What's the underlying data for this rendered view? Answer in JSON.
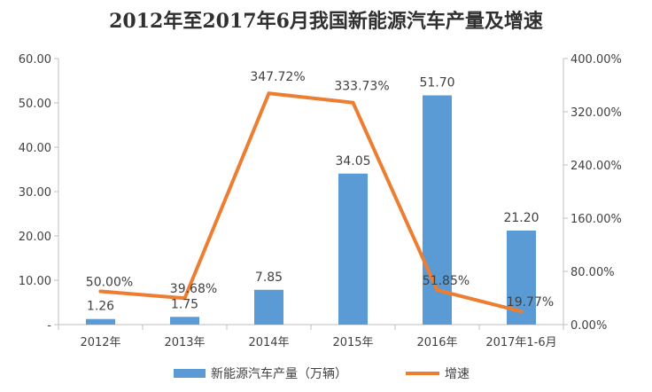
{
  "chart_data": {
    "type": "bar",
    "title": "2012年至2017年6月我国新能源汽车产量及增速",
    "categories": [
      "2012年",
      "2013年",
      "2014年",
      "2015年",
      "2016年",
      "2017年1-6月"
    ],
    "series": [
      {
        "name": "新能源汽车产量（万辆）",
        "type": "bar",
        "axis": "left",
        "values": [
          1.26,
          1.75,
          7.85,
          34.05,
          51.7,
          21.2
        ],
        "labels": [
          "1.26",
          "1.75",
          "7.85",
          "34.05",
          "51.70",
          "21.20"
        ],
        "color": "#5b9bd5"
      },
      {
        "name": "增速",
        "type": "line",
        "axis": "right",
        "values": [
          50.0,
          39.68,
          347.72,
          333.73,
          51.85,
          19.77
        ],
        "labels": [
          "50.00%",
          "39.68%",
          "347.72%",
          "333.73%",
          "51.85%",
          "19.77%"
        ],
        "color": "#ed7d31"
      }
    ],
    "y_left": {
      "ylim": [
        0,
        60
      ],
      "ticks": [
        0,
        10,
        20,
        30,
        40,
        50,
        60
      ],
      "tick_labels": [
        "-",
        "10.00",
        "20.00",
        "30.00",
        "40.00",
        "50.00",
        "60.00"
      ]
    },
    "y_right": {
      "ylim": [
        0,
        400
      ],
      "ticks": [
        0,
        80,
        160,
        240,
        320,
        400
      ],
      "tick_labels": [
        "0.00%",
        "80.00%",
        "160.00%",
        "240.00%",
        "320.00%",
        "400.00%"
      ]
    },
    "grid": false,
    "legend_position": "bottom"
  }
}
